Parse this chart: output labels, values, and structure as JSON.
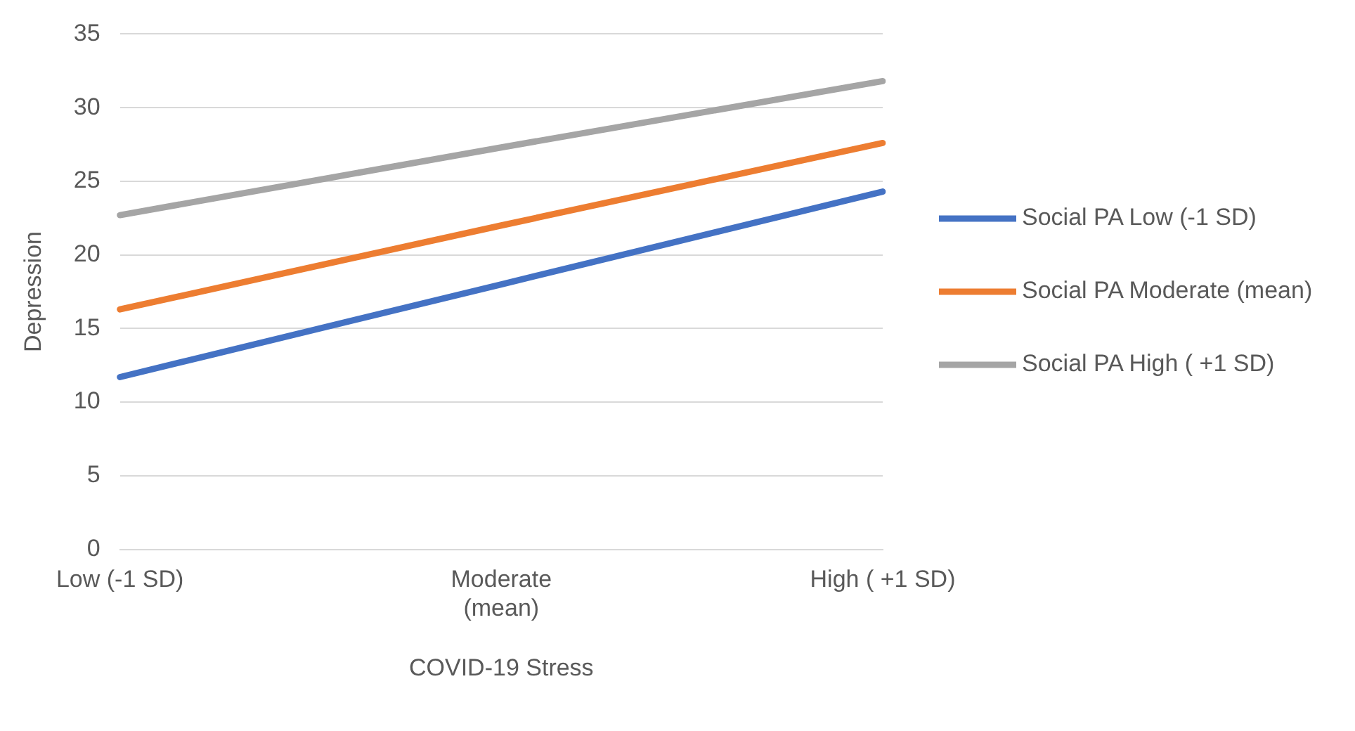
{
  "chart_data": {
    "type": "line",
    "xlabel": "COVID-19 Stress",
    "ylabel": "Depression",
    "categories": [
      "Low (-1 SD)",
      "Moderate (mean)",
      "High ( +1 SD)"
    ],
    "series": [
      {
        "name": "Social PA Low (-1 SD)",
        "color": "#4472c4",
        "values": [
          11.7,
          18.0,
          24.3
        ]
      },
      {
        "name": "Social PA Moderate (mean)",
        "color": "#ed7d31",
        "values": [
          16.3,
          22.0,
          27.6
        ]
      },
      {
        "name": "Social PA High ( +1 SD)",
        "color": "#a5a5a5",
        "values": [
          22.7,
          27.3,
          31.8
        ]
      }
    ],
    "ylim": [
      0,
      35
    ],
    "yticks": [
      0,
      5,
      10,
      15,
      20,
      25,
      30,
      35
    ],
    "grid": "y",
    "legend": "right",
    "marker": "none",
    "line_style": "solid"
  }
}
